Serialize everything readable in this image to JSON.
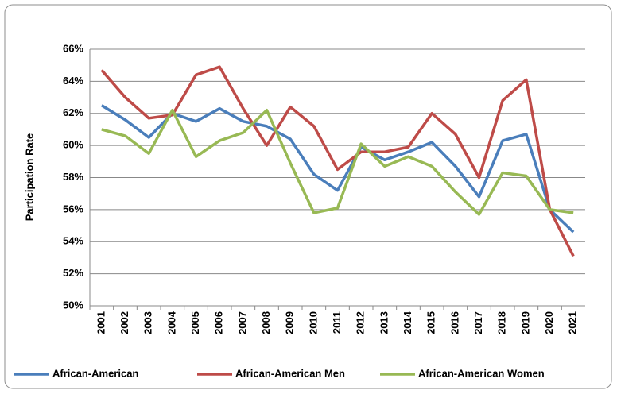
{
  "chart_data": {
    "type": "line",
    "y_label": "Participation Rate",
    "categories": [
      "2001",
      "2002",
      "2003",
      "2004",
      "2005",
      "2006",
      "2007",
      "2008",
      "2009",
      "2010",
      "2011",
      "2012",
      "2013",
      "2014",
      "2015",
      "2016",
      "2017",
      "2018",
      "2019",
      "2020",
      "2021"
    ],
    "series": [
      {
        "name": "African-American",
        "color": "#4a7ebb",
        "values": [
          62.5,
          61.6,
          60.5,
          62.0,
          61.5,
          62.3,
          61.5,
          61.2,
          60.4,
          58.2,
          57.2,
          59.9,
          59.1,
          59.6,
          60.2,
          58.7,
          56.8,
          60.3,
          60.7,
          56.0,
          54.6
        ]
      },
      {
        "name": "African-American Men",
        "color": "#be4b48",
        "values": [
          64.7,
          63.0,
          61.7,
          61.9,
          64.4,
          64.9,
          62.3,
          60.0,
          62.4,
          61.2,
          58.5,
          59.6,
          59.6,
          59.9,
          62.0,
          60.7,
          58.0,
          62.8,
          64.1,
          56.0,
          53.1
        ]
      },
      {
        "name": "African-American Women",
        "color": "#98b954",
        "values": [
          61.0,
          60.6,
          59.5,
          62.2,
          59.3,
          60.3,
          60.8,
          62.2,
          58.9,
          55.8,
          56.1,
          60.1,
          58.7,
          59.3,
          58.7,
          57.1,
          55.7,
          58.3,
          58.1,
          56.0,
          55.8
        ]
      }
    ],
    "ylim": [
      50,
      66
    ],
    "yticks": [
      {
        "value": 50,
        "label": "50%"
      },
      {
        "value": 52,
        "label": "52%"
      },
      {
        "value": 54,
        "label": "54%"
      },
      {
        "value": 56,
        "label": "56%"
      },
      {
        "value": 58,
        "label": "58%"
      },
      {
        "value": 60,
        "label": "60%"
      },
      {
        "value": 62,
        "label": "62%"
      },
      {
        "value": 64,
        "label": "64%"
      },
      {
        "value": 66,
        "label": "66%"
      }
    ],
    "grid": true,
    "legend": "bottom"
  }
}
